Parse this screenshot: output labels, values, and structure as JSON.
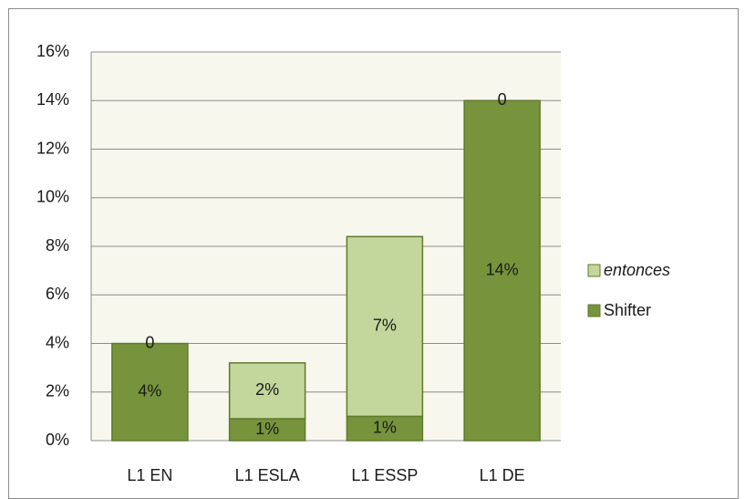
{
  "chart_data": {
    "type": "stacked_bar",
    "categories": [
      "L1 EN",
      "L1 ESLA",
      "L1 ESSP",
      "L1 DE"
    ],
    "series": [
      {
        "name": "Shifter",
        "color": "#77933c",
        "values": [
          4,
          0.9,
          1.0,
          14
        ],
        "value_labels": [
          "4%",
          "1%",
          "1%",
          "14%"
        ]
      },
      {
        "name": "entonces",
        "color": "#c3d69b",
        "values": [
          0,
          2.3,
          7.4,
          0
        ],
        "value_labels": [
          "0",
          "2%",
          "7%",
          "0"
        ]
      }
    ],
    "ylim": [
      0,
      16
    ],
    "yticks": [
      {
        "value": 0,
        "label": "0%"
      },
      {
        "value": 2,
        "label": "2%"
      },
      {
        "value": 4,
        "label": "4%"
      },
      {
        "value": 6,
        "label": "6%"
      },
      {
        "value": 8,
        "label": "8%"
      },
      {
        "value": 10,
        "label": "10%"
      },
      {
        "value": 12,
        "label": "12%"
      },
      {
        "value": 14,
        "label": "14%"
      },
      {
        "value": 16,
        "label": "16%"
      }
    ],
    "grid": true,
    "legend": "right"
  }
}
